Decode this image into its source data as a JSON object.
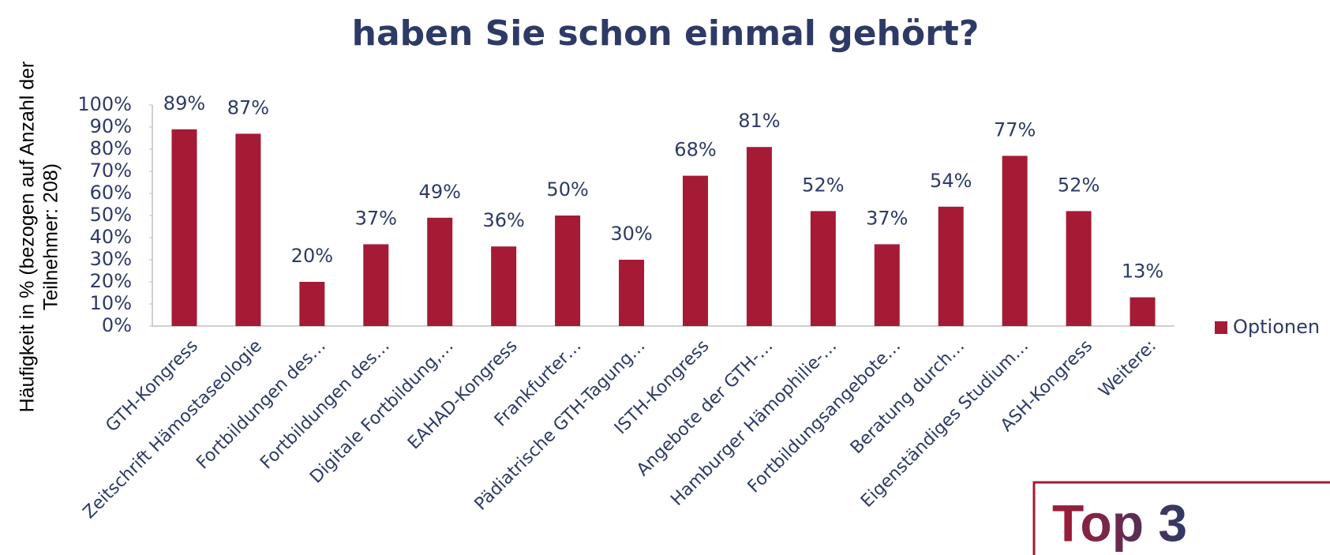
{
  "chart_data": {
    "type": "bar",
    "title": "haben Sie schon einmal gehört?",
    "y_label": [
      "Häufigkeit in % (bezogen auf Anzahl der",
      "Teilnehmer: 208)"
    ],
    "categories": [
      "GTH-Kongress",
      "Zeitschrift Hämostaseologie",
      "Fortbildungen des…",
      "Fortbildungen des…",
      "Digitale Fortbildung,…",
      "EAHAD-Kongress",
      "Frankfurter…",
      "Pädiatrische GTH-Tagung…",
      "ISTH-Kongress",
      "Angebote der GTH-…",
      "Hamburger Hämophilie-…",
      "Fortbildungsangebote…",
      "Beratung durch…",
      "Eigenständiges Studium…",
      "ASH-Kongress",
      "Weitere:"
    ],
    "series": [
      {
        "name": "Optionen",
        "color": "#a51a35",
        "values": [
          89,
          87,
          20,
          37,
          49,
          36,
          50,
          30,
          68,
          81,
          52,
          37,
          54,
          77,
          52,
          13
        ],
        "value_labels": [
          "89%",
          "87%",
          "20%",
          "37%",
          "49%",
          "36%",
          "50%",
          "30%",
          "68%",
          "81%",
          "52%",
          "37%",
          "54%",
          "77%",
          "52%",
          "13%"
        ]
      }
    ],
    "ylim": [
      0,
      100
    ],
    "yticks": [
      {
        "value": 0,
        "label": "0%"
      },
      {
        "value": 10,
        "label": "10%"
      },
      {
        "value": 20,
        "label": "20%"
      },
      {
        "value": 30,
        "label": "30%"
      },
      {
        "value": 40,
        "label": "40%"
      },
      {
        "value": 50,
        "label": "50%"
      },
      {
        "value": 60,
        "label": "60%"
      },
      {
        "value": 70,
        "label": "70%"
      },
      {
        "value": 80,
        "label": "80%"
      },
      {
        "value": 90,
        "label": "90%"
      },
      {
        "value": 100,
        "label": "100%"
      }
    ],
    "grid": false,
    "legend": "right",
    "annotation": "Top 3"
  }
}
